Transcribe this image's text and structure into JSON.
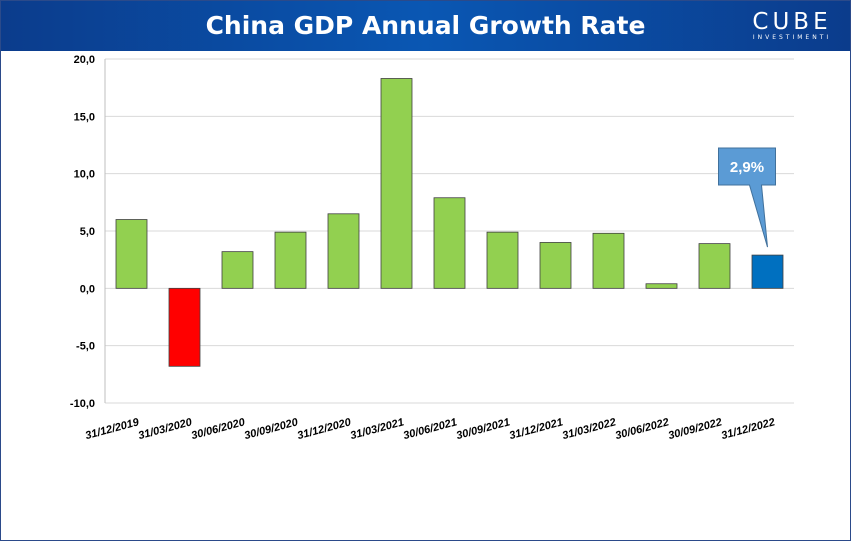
{
  "header": {
    "title": "China GDP Annual Growth Rate",
    "logo_text": "CUBE",
    "logo_subtext": "INVESTIMENTI",
    "colors": {
      "background": "#0b4fa3",
      "text": "#ffffff"
    }
  },
  "chart_data": {
    "type": "bar",
    "title": "China GDP Annual Growth Rate",
    "xlabel": "",
    "ylabel": "",
    "categories": [
      "31/12/2019",
      "31/03/2020",
      "30/06/2020",
      "30/09/2020",
      "31/12/2020",
      "31/03/2021",
      "30/06/2021",
      "30/09/2021",
      "31/12/2021",
      "31/03/2022",
      "30/06/2022",
      "30/09/2022",
      "31/12/2022"
    ],
    "values": [
      6.0,
      -6.8,
      3.2,
      4.9,
      6.5,
      18.3,
      7.9,
      4.9,
      4.0,
      4.8,
      0.4,
      3.9,
      2.9
    ],
    "bar_colors": [
      "#92d050",
      "#ff0000",
      "#92d050",
      "#92d050",
      "#92d050",
      "#92d050",
      "#92d050",
      "#92d050",
      "#92d050",
      "#92d050",
      "#92d050",
      "#92d050",
      "#0070c0"
    ],
    "ylim": [
      -10,
      20
    ],
    "yticks": [
      -10,
      -5,
      0,
      5,
      10,
      15,
      20
    ],
    "ytick_labels": [
      "-10,0",
      "-5,0",
      "0,0",
      "5,0",
      "10,0",
      "15,0",
      "20,0"
    ],
    "grid": true,
    "legend": "none",
    "annotation": {
      "text": "2,9%",
      "category": "31/12/2022",
      "color": "#5b9bd5"
    }
  }
}
